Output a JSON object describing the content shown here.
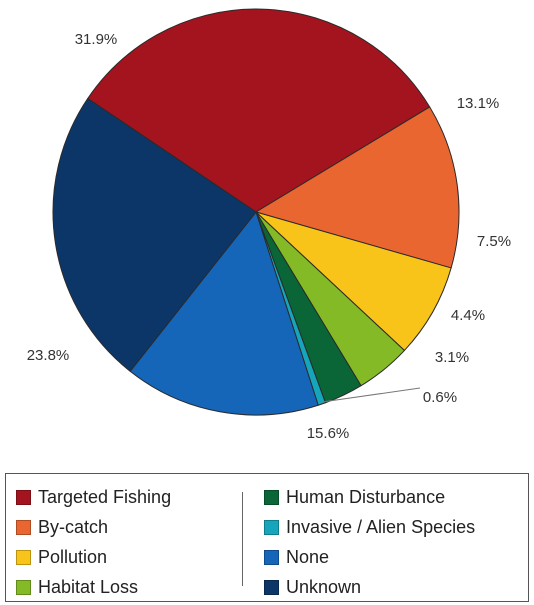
{
  "chart_data": {
    "type": "pie",
    "title": "",
    "slices": [
      {
        "name": "Targeted Fishing",
        "value": 31.9,
        "label": "31.9%",
        "color": "#A3141F"
      },
      {
        "name": "By-catch",
        "value": 13.1,
        "label": "13.1%",
        "color": "#EA6631"
      },
      {
        "name": "Pollution",
        "value": 7.5,
        "label": "7.5%",
        "color": "#F9C41A"
      },
      {
        "name": "Habitat Loss",
        "value": 4.4,
        "label": "4.4%",
        "color": "#83BA26"
      },
      {
        "name": "Human Disturbance",
        "value": 3.1,
        "label": "3.1%",
        "color": "#0A6637"
      },
      {
        "name": "Invasive / Alien Species",
        "value": 0.6,
        "label": "0.6%",
        "color": "#15A6BC"
      },
      {
        "name": "None",
        "value": 15.6,
        "label": "15.6%",
        "color": "#1565B8"
      },
      {
        "name": "Unknown",
        "value": 23.8,
        "label": "23.8%",
        "color": "#0C3668"
      }
    ],
    "legend_placement": "bottom",
    "grid": false
  },
  "legend": {
    "left_column": [
      {
        "label": "Targeted Fishing",
        "color": "#A3141F"
      },
      {
        "label": "By-catch",
        "color": "#EA6631"
      },
      {
        "label": "Pollution",
        "color": "#F9C41A"
      },
      {
        "label": "Habitat Loss",
        "color": "#83BA26"
      }
    ],
    "right_column": [
      {
        "label": "Human Disturbance",
        "color": "#0A6637"
      },
      {
        "label": "Invasive / Alien Species",
        "color": "#15A6BC"
      },
      {
        "label": "None",
        "color": "#1565B8"
      },
      {
        "label": "Unknown",
        "color": "#0C3668"
      }
    ]
  }
}
